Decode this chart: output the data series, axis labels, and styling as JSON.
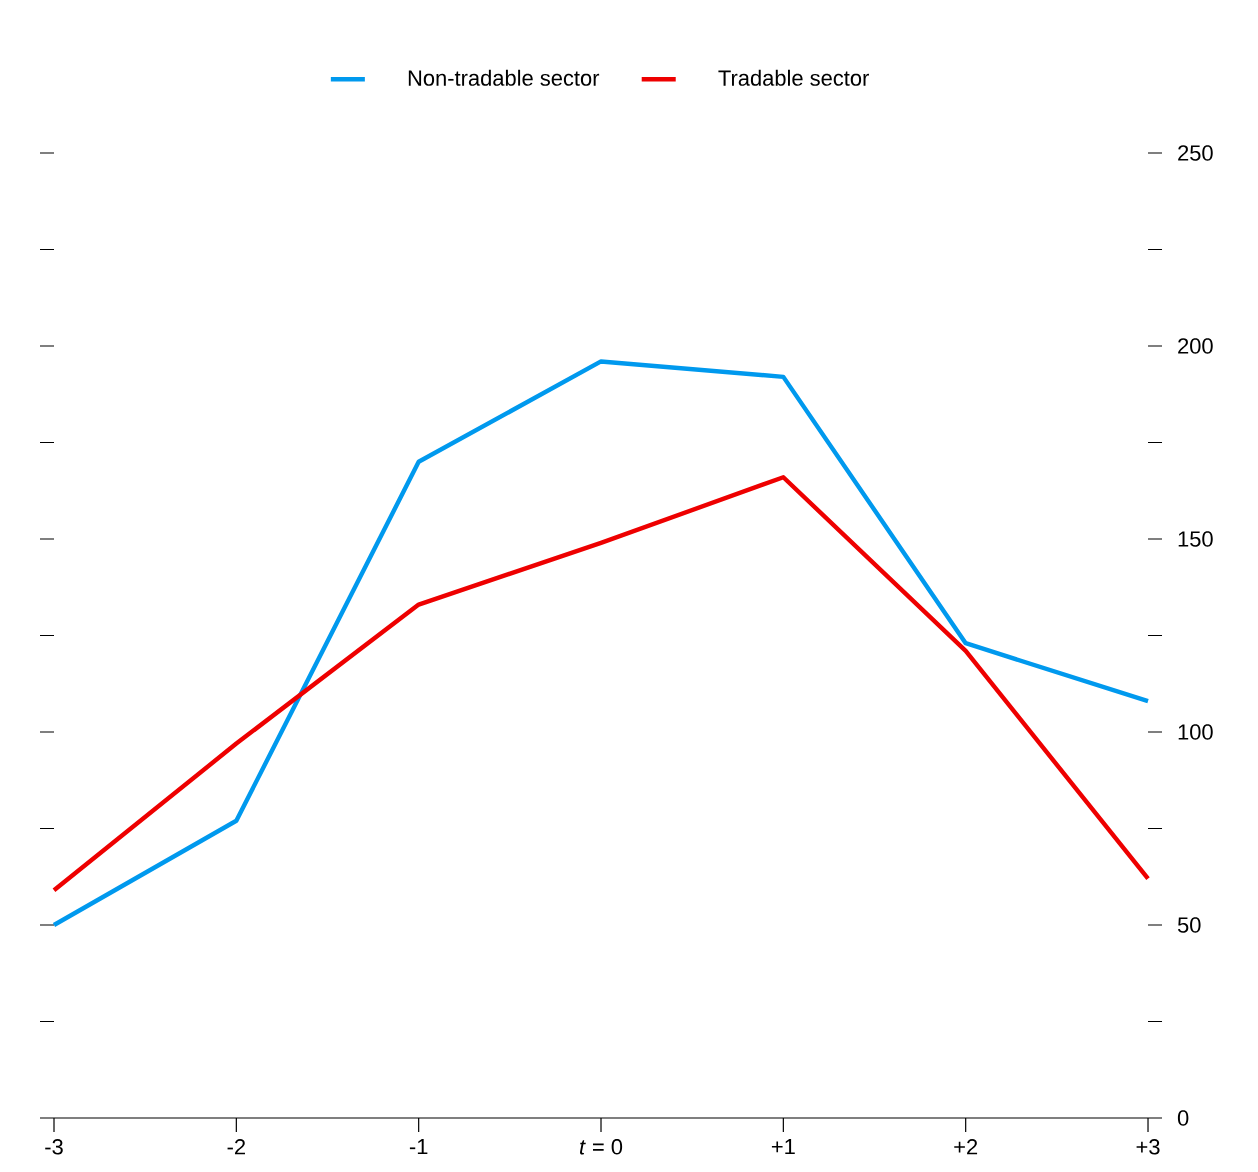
{
  "chart_data": {
    "type": "line",
    "categories": [
      "-3",
      "-2",
      "-1",
      "*t* = 0",
      "+1",
      "+2",
      "+3"
    ],
    "series": [
      {
        "name": "Non-tradable sector",
        "color": "#0099ee",
        "values": [
          50,
          77,
          170,
          196,
          192,
          123,
          108
        ]
      },
      {
        "name": "Tradable sector",
        "color": "#ee0000",
        "values": [
          59,
          97,
          133,
          149,
          166,
          121,
          62
        ]
      }
    ],
    "ylim": [
      0,
      250
    ],
    "yticks": [
      0,
      {
        "value": 25,
        "label": null
      },
      50,
      {
        "value": 75,
        "label": null
      },
      100,
      {
        "value": 125,
        "label": null
      },
      150,
      {
        "value": 175,
        "label": null
      },
      200,
      {
        "value": 225,
        "label": null
      },
      250
    ],
    "legend": "top",
    "marker": "none",
    "line_style": "solid"
  }
}
